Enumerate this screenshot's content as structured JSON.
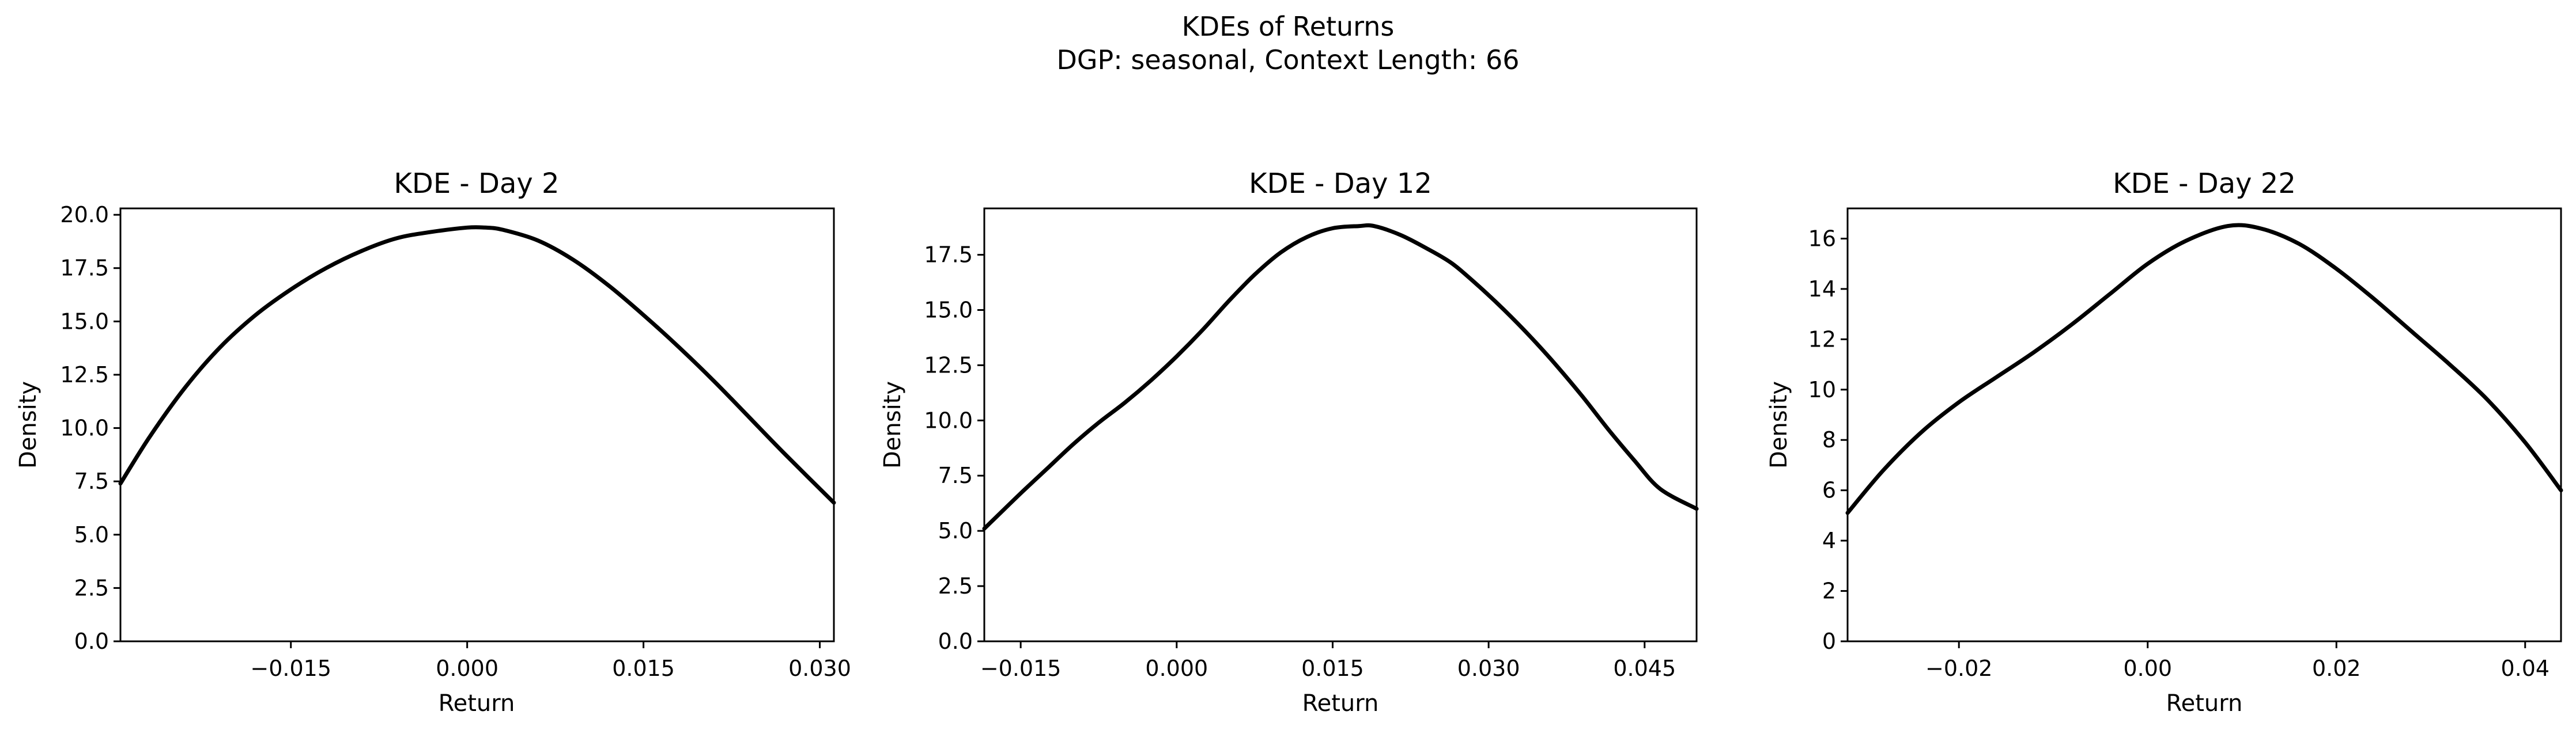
{
  "figure": {
    "title_line1": "KDEs of Returns",
    "title_line2": "DGP: seasonal, Context Length: 66"
  },
  "chart_data": [
    {
      "type": "line",
      "title": "KDE - Day 2",
      "xlabel": "Return",
      "ylabel": "Density",
      "xlim": [
        -0.0295,
        0.0312
      ],
      "ylim": [
        0,
        20.3
      ],
      "xticks": [
        -0.015,
        0.0,
        0.015,
        0.03
      ],
      "xtick_labels": [
        "−0.015",
        "0.000",
        "0.015",
        "0.030"
      ],
      "yticks": [
        0,
        2.5,
        5,
        7.5,
        10,
        12.5,
        15,
        17.5,
        20
      ],
      "ytick_labels": [
        "0.0",
        "2.5",
        "5.0",
        "7.5",
        "10.0",
        "12.5",
        "15.0",
        "17.5",
        "20.0"
      ],
      "line_color": "#000000",
      "grid": false,
      "series": [
        {
          "x": [
            -0.0295,
            -0.027,
            -0.024,
            -0.021,
            -0.018,
            -0.015,
            -0.012,
            -0.009,
            -0.006,
            -0.003,
            0.0,
            0.0015,
            0.003,
            0.006,
            0.009,
            0.012,
            0.015,
            0.018,
            0.021,
            0.024,
            0.027,
            0.0312
          ],
          "y": [
            7.4,
            9.6,
            11.9,
            13.8,
            15.3,
            16.5,
            17.5,
            18.3,
            18.9,
            19.2,
            19.4,
            19.4,
            19.3,
            18.8,
            17.9,
            16.7,
            15.3,
            13.8,
            12.2,
            10.5,
            8.8,
            6.5
          ]
        }
      ]
    },
    {
      "type": "line",
      "title": "KDE - Day 12",
      "xlabel": "Return",
      "ylabel": "Density",
      "xlim": [
        -0.0185,
        0.05
      ],
      "ylim": [
        0,
        19.6
      ],
      "xticks": [
        -0.015,
        0.0,
        0.015,
        0.03,
        0.045
      ],
      "xtick_labels": [
        "−0.015",
        "0.000",
        "0.015",
        "0.030",
        "0.045"
      ],
      "yticks": [
        0,
        2.5,
        5,
        7.5,
        10,
        12.5,
        15,
        17.5
      ],
      "ytick_labels": [
        "0.0",
        "2.5",
        "5.0",
        "7.5",
        "10.0",
        "12.5",
        "15.0",
        "17.5"
      ],
      "line_color": "#000000",
      "grid": false,
      "series": [
        {
          "x": [
            -0.0185,
            -0.015,
            -0.0125,
            -0.01,
            -0.0075,
            -0.005,
            -0.0025,
            0.0,
            0.0025,
            0.005,
            0.0075,
            0.01,
            0.0125,
            0.015,
            0.0175,
            0.019,
            0.0215,
            0.024,
            0.0265,
            0.029,
            0.0315,
            0.034,
            0.0365,
            0.039,
            0.0415,
            0.044,
            0.0465,
            0.05
          ],
          "y": [
            5.1,
            6.7,
            7.8,
            8.9,
            9.9,
            10.8,
            11.8,
            12.9,
            14.1,
            15.4,
            16.6,
            17.6,
            18.3,
            18.7,
            18.8,
            18.8,
            18.4,
            17.8,
            17.1,
            16.1,
            15.0,
            13.8,
            12.5,
            11.1,
            9.6,
            8.2,
            6.9,
            6.0
          ]
        }
      ]
    },
    {
      "type": "line",
      "title": "KDE - Day 22",
      "xlabel": "Return",
      "ylabel": "Density",
      "xlim": [
        -0.0318,
        0.0438
      ],
      "ylim": [
        0,
        17.2
      ],
      "xticks": [
        -0.02,
        0.0,
        0.02,
        0.04
      ],
      "xtick_labels": [
        "−0.02",
        "0.00",
        "0.02",
        "0.04"
      ],
      "yticks": [
        0,
        2,
        4,
        6,
        8,
        10,
        12,
        14,
        16
      ],
      "ytick_labels": [
        "0",
        "2",
        "4",
        "6",
        "8",
        "10",
        "12",
        "14",
        "16"
      ],
      "line_color": "#000000",
      "grid": false,
      "series": [
        {
          "x": [
            -0.0318,
            -0.028,
            -0.024,
            -0.02,
            -0.016,
            -0.012,
            -0.008,
            -0.004,
            0.0,
            0.004,
            0.0085,
            0.012,
            0.016,
            0.02,
            0.024,
            0.028,
            0.032,
            0.036,
            0.04,
            0.0438
          ],
          "y": [
            5.1,
            6.8,
            8.3,
            9.5,
            10.5,
            11.5,
            12.6,
            13.8,
            15.0,
            15.9,
            16.5,
            16.4,
            15.8,
            14.8,
            13.6,
            12.3,
            11.0,
            9.6,
            7.9,
            6.0
          ]
        }
      ]
    }
  ]
}
